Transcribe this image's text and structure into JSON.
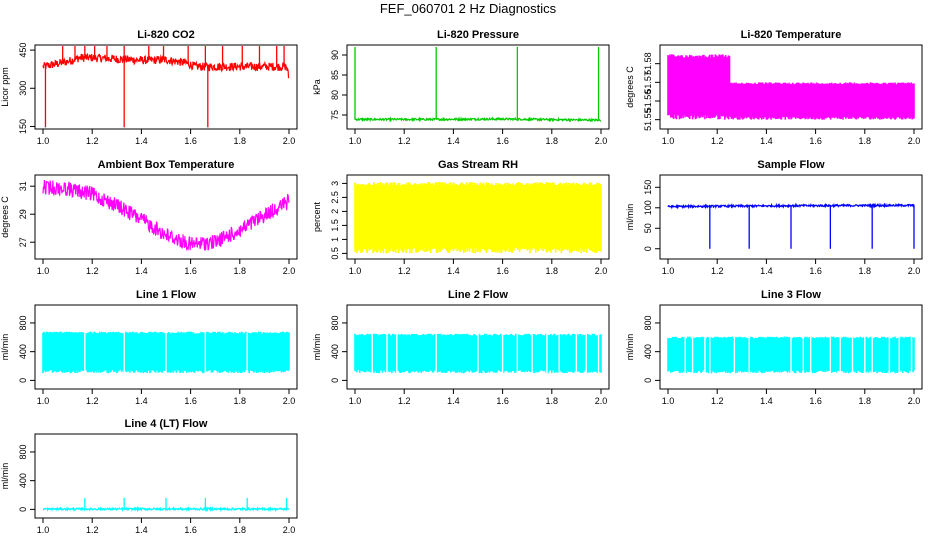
{
  "page": {
    "title": "FEF_060701  2 Hz Diagnostics"
  },
  "colors": {
    "red": "#ff0000",
    "green": "#00cc00",
    "magenta": "#ff00ff",
    "yellow": "#ffff00",
    "blue": "#0000ff",
    "cyan": "#00ffff"
  },
  "chart_data": [
    {
      "title": "Li-820 CO2",
      "type": "line",
      "ylabel": "Licor ppm",
      "color": "#ff0000",
      "xlim": [
        1.0,
        2.0
      ],
      "ylim": [
        140,
        470
      ],
      "xticks": [
        "1.0",
        "1.2",
        "1.4",
        "1.6",
        "1.8",
        "2.0"
      ],
      "yticks": [
        150,
        300,
        450
      ],
      "series": [
        {
          "x": [
            1.0,
            1.05,
            1.1,
            1.15,
            1.2,
            1.3,
            1.4,
            1.5,
            1.58,
            1.62,
            1.7,
            1.8,
            1.9,
            1.99,
            2.0
          ],
          "values": [
            385,
            395,
            405,
            420,
            420,
            415,
            410,
            412,
            400,
            385,
            385,
            385,
            385,
            385,
            340
          ]
        }
      ],
      "spikes_up": [
        1.08,
        1.13,
        1.17,
        1.21,
        1.26,
        1.33,
        1.43,
        1.49,
        1.59,
        1.66,
        1.73,
        1.81,
        1.88,
        1.95,
        1.98
      ],
      "spikes_down": [
        1.01,
        1.33,
        1.67
      ]
    },
    {
      "title": "Li-820 Pressure",
      "type": "line",
      "ylabel": "kPa",
      "color": "#00cc00",
      "xlim": [
        1.0,
        2.0
      ],
      "ylim": [
        71.5,
        92.5
      ],
      "xticks": [
        "1.0",
        "1.2",
        "1.4",
        "1.6",
        "1.8",
        "2.0"
      ],
      "yticks": [
        75,
        80,
        85,
        90
      ],
      "series": [
        {
          "x": [
            1.0,
            1.3,
            1.6,
            2.0
          ],
          "values": [
            73.9,
            73.9,
            74.0,
            73.7
          ]
        }
      ],
      "spikes_up": [
        1.0,
        1.33,
        1.66,
        1.99
      ],
      "spike_peak": 92
    },
    {
      "title": "Li-820 Temperature",
      "type": "line",
      "ylabel": "degrees C",
      "color": "#ff00ff",
      "xlim": [
        1.0,
        2.0
      ],
      "ylim": [
        51.545,
        51.59
      ],
      "xticks": [
        "1.0",
        "1.2",
        "1.4",
        "1.6",
        "1.8",
        "2.0"
      ],
      "yticks": [
        51.55,
        51.56,
        51.57,
        51.58
      ],
      "series": [
        {
          "x": [
            1.0,
            1.25,
            1.25,
            2.0
          ],
          "low": [
            51.55,
            51.55,
            51.55,
            51.55
          ],
          "high": [
            51.585,
            51.585,
            51.57,
            51.57
          ]
        }
      ]
    },
    {
      "title": "Ambient Box Temperature",
      "type": "line",
      "ylabel": "degrees C",
      "color": "#ff00ff",
      "xlim": [
        1.0,
        2.0
      ],
      "ylim": [
        25.8,
        31.8
      ],
      "xticks": [
        "1.0",
        "1.2",
        "1.4",
        "1.6",
        "1.8",
        "2.0"
      ],
      "yticks": [
        27,
        29,
        31
      ],
      "series": [
        {
          "x": [
            1.0,
            1.1,
            1.2,
            1.3,
            1.4,
            1.5,
            1.6,
            1.7,
            1.8,
            1.9,
            2.0
          ],
          "values": [
            31.3,
            31.2,
            30.8,
            30.0,
            29.0,
            27.9,
            27.2,
            27.4,
            28.2,
            29.3,
            30.3
          ]
        }
      ]
    },
    {
      "title": "Gas Stream RH",
      "type": "line",
      "ylabel": "percent",
      "color": "#ffff00",
      "xlim": [
        1.0,
        2.0
      ],
      "ylim": [
        0.3,
        3.3
      ],
      "xticks": [
        "1.0",
        "1.2",
        "1.4",
        "1.6",
        "1.8",
        "2.0"
      ],
      "yticks": [
        0.5,
        1.0,
        1.5,
        2.0,
        2.5,
        3.0
      ],
      "series": [
        {
          "x": [
            1.0,
            2.0
          ],
          "low": [
            0.5,
            0.5
          ],
          "high": [
            3.05,
            3.05
          ]
        }
      ]
    },
    {
      "title": "Sample Flow",
      "type": "line",
      "ylabel": "ml/min",
      "color": "#0000ff",
      "xlim": [
        1.0,
        2.0
      ],
      "ylim": [
        -25,
        180
      ],
      "xticks": [
        "1.0",
        "1.2",
        "1.4",
        "1.6",
        "1.8",
        "2.0"
      ],
      "yticks": [
        0,
        50,
        100,
        150
      ],
      "series": [
        {
          "x": [
            1.0,
            1.5,
            2.0
          ],
          "values": [
            103,
            105,
            106
          ]
        }
      ],
      "spikes_down": [
        1.17,
        1.33,
        1.5,
        1.66,
        1.83,
        2.0
      ]
    },
    {
      "title": "Line 1 Flow",
      "type": "line",
      "ylabel": "ml/min",
      "color": "#00ffff",
      "xlim": [
        1.0,
        2.0
      ],
      "ylim": [
        -120,
        1050
      ],
      "xticks": [
        "1.0",
        "1.2",
        "1.4",
        "1.6",
        "1.8",
        "2.0"
      ],
      "yticks": [
        0,
        400,
        800
      ],
      "series": [
        {
          "x": [
            1.0,
            2.0
          ],
          "low": [
            100,
            100
          ],
          "high": [
            680,
            680
          ]
        }
      ],
      "gaps": [
        1.17,
        1.33,
        1.5,
        1.66,
        1.83
      ]
    },
    {
      "title": "Line 2 Flow",
      "type": "line",
      "ylabel": "ml/min",
      "color": "#00ffff",
      "xlim": [
        1.0,
        2.0
      ],
      "ylim": [
        -120,
        1050
      ],
      "xticks": [
        "1.0",
        "1.2",
        "1.4",
        "1.6",
        "1.8",
        "2.0"
      ],
      "yticks": [
        0,
        400,
        800
      ],
      "series": [
        {
          "x": [
            1.0,
            2.0
          ],
          "low": [
            100,
            100
          ],
          "high": [
            650,
            650
          ]
        }
      ],
      "gaps": [
        1.07,
        1.13,
        1.17,
        1.33,
        1.5,
        1.6,
        1.66,
        1.72,
        1.78,
        1.83,
        1.9,
        1.94,
        1.99
      ]
    },
    {
      "title": "Line 3 Flow",
      "type": "line",
      "ylabel": "ml/min",
      "color": "#00ffff",
      "xlim": [
        1.0,
        2.0
      ],
      "ylim": [
        -120,
        1050
      ],
      "xticks": [
        "1.0",
        "1.2",
        "1.4",
        "1.6",
        "1.8",
        "2.0"
      ],
      "yticks": [
        0,
        400,
        800
      ],
      "series": [
        {
          "x": [
            1.0,
            2.0
          ],
          "low": [
            100,
            100
          ],
          "high": [
            610,
            610
          ]
        }
      ],
      "gaps": [
        1.07,
        1.1,
        1.15,
        1.17,
        1.27,
        1.33,
        1.5,
        1.55,
        1.58,
        1.66,
        1.7,
        1.75,
        1.8,
        1.83,
        1.9,
        1.94,
        1.99
      ]
    },
    {
      "title": "Line 4 (LT) Flow",
      "type": "line",
      "ylabel": "ml/min",
      "color": "#00ffff",
      "xlim": [
        1.0,
        2.0
      ],
      "ylim": [
        -120,
        1050
      ],
      "xticks": [
        "1.0",
        "1.2",
        "1.4",
        "1.6",
        "1.8",
        "2.0"
      ],
      "yticks": [
        0,
        400,
        800
      ],
      "series": [
        {
          "x": [
            1.0,
            2.0
          ],
          "values": [
            5,
            5
          ]
        }
      ],
      "spikes_up": [
        1.17,
        1.33,
        1.5,
        1.66,
        1.83,
        1.99
      ],
      "spike_peak": 160
    }
  ]
}
